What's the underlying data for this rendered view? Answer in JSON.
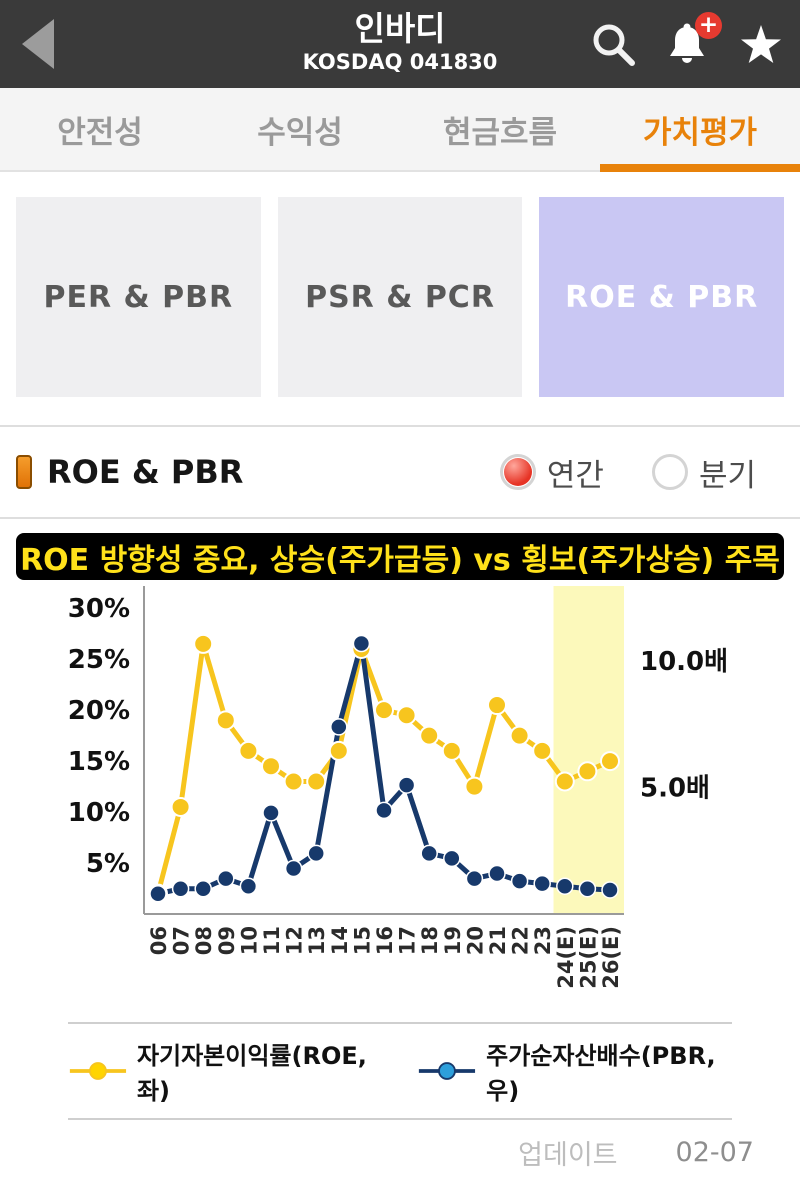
{
  "header": {
    "title": "인바디",
    "subtitle": "KOSDAQ 041830",
    "notification_badge": "+"
  },
  "tabs": [
    {
      "label": "안전성"
    },
    {
      "label": "수익성"
    },
    {
      "label": "현금흐름"
    },
    {
      "label": "가치평가"
    }
  ],
  "active_tab": "가치평가",
  "cards": [
    {
      "label": "PER & PBR"
    },
    {
      "label": "PSR & PCR"
    },
    {
      "label": "ROE & PBR"
    }
  ],
  "active_card": "ROE & PBR",
  "section": {
    "title": "ROE & PBR",
    "radios": [
      {
        "label": "연간",
        "selected": true
      },
      {
        "label": "분기",
        "selected": false
      }
    ]
  },
  "chart_data": {
    "type": "line",
    "title": "ROE 방향성 중요, 상승(주가급등) vs 횡보(주가상승) 주목",
    "categories": [
      "06",
      "07",
      "08",
      "09",
      "10",
      "11",
      "12",
      "13",
      "14",
      "15",
      "16",
      "17",
      "18",
      "19",
      "20",
      "21",
      "22",
      "23",
      "24(E)",
      "25(E)",
      "26(E)"
    ],
    "series": [
      {
        "name": "자기자본이익률(ROE,좌)",
        "axis": "left",
        "color": "#f7c51e",
        "legend_dot": "#ffd400",
        "values": [
          2,
          10.5,
          26.5,
          19,
          16,
          14.5,
          13,
          13,
          16,
          26,
          20,
          19.5,
          17.5,
          16,
          12.5,
          20.5,
          17.5,
          16,
          13,
          14,
          15
        ]
      },
      {
        "name": "주가순자산배수(PBR,우)",
        "axis": "right",
        "color": "#17396b",
        "legend_dot": "#2d9fdb",
        "values": [
          0.8,
          1.0,
          1.0,
          1.4,
          1.1,
          4.0,
          1.8,
          2.4,
          7.4,
          10.7,
          4.1,
          5.1,
          2.4,
          2.2,
          1.4,
          1.6,
          1.3,
          1.2,
          1.1,
          1.0,
          0.95
        ]
      }
    ],
    "left_axis": {
      "unit": "%",
      "ticks": [
        30,
        25,
        20,
        15,
        10,
        5
      ],
      "min": 0,
      "max": 31
    },
    "right_axis": {
      "unit": "배",
      "ticks": [
        10.0,
        5.0
      ],
      "min": 0,
      "max": 12.5
    },
    "highlight": {
      "from_category": "24(E)",
      "color": "#fcf9bb"
    },
    "grid": false,
    "legend_position": "bottom"
  },
  "footer": {
    "update_label": "업데이트",
    "date": "02-07"
  }
}
